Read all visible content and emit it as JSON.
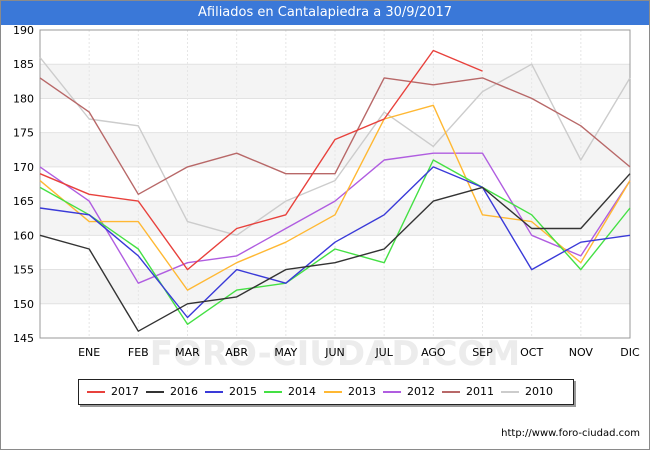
{
  "header": {
    "title": "Afiliados en Cantalapiedra a 30/9/2017"
  },
  "footer": {
    "source": "http://www.foro-ciudad.com"
  },
  "watermark": "FORO-CIUDAD.COM",
  "chart_data": {
    "type": "line",
    "title": "Afiliados en Cantalapiedra a 30/9/2017",
    "xlabel": "",
    "ylabel": "",
    "categories": [
      "",
      "ENE",
      "FEB",
      "MAR",
      "ABR",
      "MAY",
      "JUN",
      "JUL",
      "AGO",
      "SEP",
      "OCT",
      "NOV",
      "DIC"
    ],
    "ylim": [
      145,
      190
    ],
    "yticks": [
      145,
      150,
      155,
      160,
      165,
      170,
      175,
      180,
      185,
      190
    ],
    "grid": true,
    "legend_position": "bottom",
    "series": [
      {
        "name": "2017",
        "color": "#e8413c",
        "values": [
          169,
          166,
          165,
          155,
          161,
          163,
          174,
          177,
          187,
          184,
          null,
          null,
          null
        ]
      },
      {
        "name": "2016",
        "color": "#333333",
        "values": [
          160,
          158,
          146,
          150,
          151,
          155,
          156,
          158,
          165,
          167,
          161,
          161,
          169
        ]
      },
      {
        "name": "2015",
        "color": "#3a3ad8",
        "values": [
          164,
          163,
          157,
          148,
          155,
          153,
          159,
          163,
          170,
          167,
          155,
          159,
          160
        ]
      },
      {
        "name": "2014",
        "color": "#44e044",
        "values": [
          167,
          163,
          158,
          147,
          152,
          153,
          158,
          156,
          171,
          167,
          163,
          155,
          164
        ]
      },
      {
        "name": "2013",
        "color": "#ffb833",
        "values": [
          168,
          162,
          162,
          152,
          156,
          159,
          163,
          177,
          179,
          163,
          162,
          156,
          168
        ]
      },
      {
        "name": "2012",
        "color": "#b05de0",
        "values": [
          170,
          165,
          153,
          156,
          157,
          161,
          165,
          171,
          172,
          172,
          160,
          157,
          168
        ]
      },
      {
        "name": "2011",
        "color": "#b86868",
        "values": [
          183,
          178,
          166,
          170,
          172,
          169,
          169,
          183,
          182,
          183,
          180,
          176,
          170
        ]
      },
      {
        "name": "2010",
        "color": "#cccccc",
        "values": [
          186,
          177,
          176,
          162,
          160,
          165,
          168,
          178,
          173,
          181,
          185,
          171,
          183
        ]
      }
    ]
  }
}
